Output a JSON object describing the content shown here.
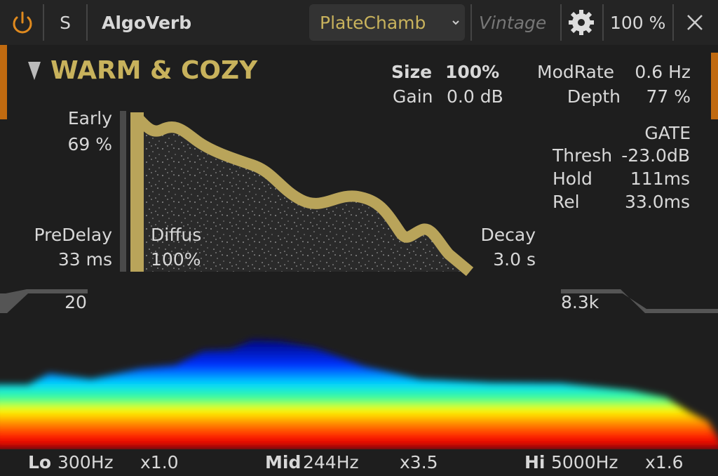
{
  "toolbar": {
    "solo": "S",
    "plugin_name": "AlgoVerb",
    "preset": "PlateChamb",
    "mode": "Vintage",
    "zoom": "100 %"
  },
  "preset_title": "WARM & COZY",
  "params": {
    "size": {
      "label": "Size",
      "value": "100%"
    },
    "gain": {
      "label": "Gain",
      "value": "0.0 dB"
    },
    "mod_rate": {
      "label": "ModRate",
      "value": "0.6 Hz"
    },
    "depth": {
      "label": "Depth",
      "value": "77 %"
    },
    "early": {
      "label": "Early",
      "value": "69 %"
    },
    "pre_delay": {
      "label": "PreDelay",
      "value": "33 ms"
    },
    "diffusion": {
      "label": "Diffus",
      "value": "100%"
    },
    "decay": {
      "label": "Decay",
      "value": "3.0 s"
    }
  },
  "gate": {
    "title": "GATE",
    "rows": [
      {
        "label": "Thresh",
        "value": "-23.0dB"
      },
      {
        "label": "Hold",
        "value": "111ms"
      },
      {
        "label": "Rel",
        "value": "33.0ms"
      }
    ]
  },
  "filters": {
    "low_cut": "20",
    "high_cut": "8.3k"
  },
  "bands": [
    {
      "name": "Lo",
      "freq": "300Hz",
      "mult": "x1.0"
    },
    {
      "name": "Mid",
      "freq": "244Hz",
      "mult": "x3.5"
    },
    {
      "name": "Hi",
      "freq": "5000Hz",
      "mult": "x1.6"
    }
  ]
}
